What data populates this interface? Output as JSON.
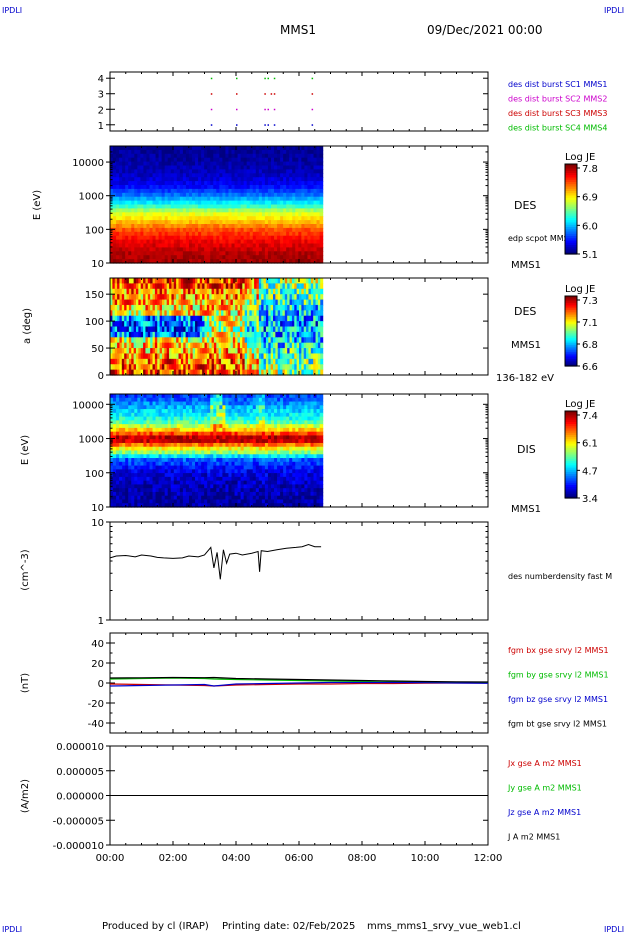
{
  "header": {
    "corner_label": "IPDLI",
    "spacecraft": "MMS1",
    "datetime": "09/Dec/2021 00:00"
  },
  "footer": {
    "credit": "Produced by cl (IRAP)",
    "printing_date": "Printing date: 02/Feb/2025",
    "filename": "mms_mms1_srvy_vue_web1.cl"
  },
  "colors": {
    "blue": "#0000cc",
    "magenta": "#cc00cc",
    "red": "#cc0000",
    "green": "#00bb00",
    "black": "#000000"
  },
  "chart_data": [
    {
      "type": "scatter",
      "panel": "burst-availability",
      "yticks": [
        "1",
        "2",
        "3",
        "4"
      ],
      "ylim": [
        0.6,
        4.4
      ],
      "xlim": [
        0,
        12
      ],
      "series": [
        {
          "name": "des dist burst SC1 MMS1",
          "y": 1,
          "color": "#0000cc",
          "x": [
            3.2,
            4.0,
            4.9,
            5.0,
            5.2,
            6.4
          ]
        },
        {
          "name": "des dist burst SC2 MMS2",
          "y": 2,
          "color": "#cc00cc",
          "x": [
            3.2,
            4.0,
            4.9,
            5.0,
            5.2,
            6.4
          ]
        },
        {
          "name": "des dist burst SC3 MMS3",
          "y": 3,
          "color": "#cc0000",
          "x": [
            3.2,
            4.0,
            4.9,
            5.1,
            5.2,
            6.4
          ]
        },
        {
          "name": "des dist burst SC4 MMS4",
          "y": 4,
          "color": "#00bb00",
          "x": [
            3.2,
            4.0,
            4.9,
            5.0,
            5.2,
            6.4
          ]
        }
      ]
    },
    {
      "type": "heatmap",
      "panel": "des-energy",
      "ylabel": "E (eV)",
      "yscale": "log",
      "ylim": [
        10,
        30000
      ],
      "yticks": [
        "10",
        "100",
        "1000",
        "10000"
      ],
      "xlim": [
        0,
        12
      ],
      "data_end": 6.75,
      "right_labels": [
        "DES",
        "edp scpot MMS1",
        "MMS1"
      ],
      "colorbar": {
        "title": "Log JE",
        "min": 5.1,
        "max": 8.0,
        "ticks": [
          "7.8",
          "6.9",
          "6.0",
          "5.1"
        ]
      },
      "profile_log_energy": [
        1.0,
        1.3,
        1.6,
        2.0,
        2.3,
        2.5,
        2.7,
        3.0,
        3.3,
        3.6,
        4.0,
        4.5
      ],
      "profile_value": [
        7.9,
        7.85,
        7.7,
        7.4,
        7.0,
        6.8,
        6.3,
        5.8,
        5.45,
        5.3,
        5.2,
        5.15
      ]
    },
    {
      "type": "heatmap",
      "panel": "des-pitch-angle",
      "ylabel": "a (deg)",
      "ylim": [
        0,
        180
      ],
      "yticks": [
        "0",
        "50",
        "100",
        "150"
      ],
      "xlim": [
        0,
        12
      ],
      "data_end": 6.75,
      "right_labels": [
        "DES",
        "MMS1",
        "136-182 eV"
      ],
      "colorbar": {
        "title": "Log JE",
        "min": 6.6,
        "max": 7.35,
        "ticks": [
          "7.3",
          "7.1",
          "6.8",
          "6.6"
        ]
      }
    },
    {
      "type": "heatmap",
      "panel": "dis-energy",
      "ylabel": "E (eV)",
      "yscale": "log",
      "ylim": [
        10,
        20000
      ],
      "yticks": [
        "10",
        "100",
        "1000",
        "10000"
      ],
      "xlim": [
        0,
        12
      ],
      "data_end": 6.75,
      "right_labels": [
        "DIS",
        "MMS1"
      ],
      "colorbar": {
        "title": "Log JE",
        "min": 3.4,
        "max": 7.6,
        "ticks": [
          "7.4",
          "6.1",
          "4.7",
          "3.4"
        ]
      },
      "profile_log_energy": [
        1.0,
        1.5,
        2.0,
        2.4,
        2.6,
        2.75,
        2.9,
        3.0,
        3.15,
        3.3,
        3.5,
        3.8,
        4.0,
        4.3
      ],
      "profile_value": [
        3.5,
        3.6,
        3.8,
        4.3,
        5.6,
        6.2,
        7.2,
        7.5,
        6.8,
        6.0,
        5.2,
        4.8,
        4.5,
        4.1
      ]
    },
    {
      "type": "line",
      "panel": "density",
      "ylabel": "(cm^-3)",
      "yscale": "log",
      "ylim": [
        1,
        10
      ],
      "yticks": [
        "1",
        "10"
      ],
      "xlim": [
        0,
        12
      ],
      "series": [
        {
          "name": "des numberdensity fast M",
          "color": "#000000",
          "x": [
            0.0,
            0.2,
            0.5,
            0.8,
            1.0,
            1.3,
            1.5,
            1.7,
            2.0,
            2.3,
            2.5,
            2.8,
            3.0,
            3.2,
            3.3,
            3.4,
            3.5,
            3.6,
            3.7,
            3.8,
            4.0,
            4.2,
            4.5,
            4.7,
            4.75,
            4.8,
            5.0,
            5.3,
            5.6,
            5.9,
            6.1,
            6.3,
            6.5,
            6.7
          ],
          "y": [
            4.3,
            4.5,
            4.55,
            4.4,
            4.6,
            4.5,
            4.35,
            4.3,
            4.25,
            4.3,
            4.5,
            4.4,
            4.6,
            5.5,
            3.4,
            4.9,
            2.6,
            5.2,
            3.8,
            4.7,
            4.8,
            4.6,
            4.8,
            5.0,
            3.1,
            5.1,
            5.0,
            5.2,
            5.4,
            5.5,
            5.6,
            5.9,
            5.6,
            5.6
          ]
        }
      ]
    },
    {
      "type": "line",
      "panel": "magnetic-field",
      "ylabel": "(nT)",
      "ylim": [
        -50,
        50
      ],
      "yticks": [
        "-40",
        "-20",
        "0",
        "20",
        "40"
      ],
      "xlim": [
        0,
        12
      ],
      "series": [
        {
          "name": "fgm bx gse srvy l2 MMS1",
          "color": "#cc0000",
          "x": [
            0,
            1,
            2,
            3,
            3.3,
            4,
            5,
            6,
            7,
            8,
            9,
            10,
            11,
            12
          ],
          "y": [
            -1,
            -1.5,
            -2,
            -2.5,
            -3,
            -2,
            -1.5,
            -1,
            -1,
            -0.5,
            -0.5,
            -0.2,
            0,
            0
          ]
        },
        {
          "name": "fgm by gse srvy l2 MMS1",
          "color": "#00bb00",
          "x": [
            0,
            1,
            2,
            3,
            3.3,
            4,
            5,
            6,
            7,
            8,
            9,
            10,
            11,
            12
          ],
          "y": [
            4,
            4.5,
            5,
            4.5,
            4,
            3.5,
            3,
            2.5,
            2,
            1.5,
            1,
            0.8,
            0.5,
            0.3
          ]
        },
        {
          "name": "fgm bz gse srvy l2 MMS1",
          "color": "#0000cc",
          "x": [
            0,
            1,
            2,
            3,
            3.3,
            4,
            5,
            6,
            7,
            8,
            9,
            10,
            11,
            12
          ],
          "y": [
            -3,
            -2.5,
            -2,
            -1.5,
            -3,
            -1,
            -0.5,
            0,
            0.5,
            0.5,
            0.5,
            0.3,
            0,
            -0.3
          ]
        },
        {
          "name": "fgm bt gse srvy l2 MMS1",
          "color": "#000000",
          "x": [
            0,
            1,
            2,
            3,
            3.3,
            4,
            5,
            6,
            7,
            8,
            9,
            10,
            11,
            12
          ],
          "y": [
            5,
            5.2,
            5.5,
            5.3,
            5.5,
            4.5,
            4,
            3.5,
            3,
            2.5,
            2,
            1.5,
            1.2,
            1
          ]
        }
      ]
    },
    {
      "type": "line",
      "panel": "current-density",
      "ylabel": "(A/m2)",
      "ylim": [
        -1e-05,
        1e-05
      ],
      "yticks": [
        "0.000010",
        "0.000005",
        "0.000000",
        "-0.000005",
        "-0.000010"
      ],
      "xlim": [
        0,
        12
      ],
      "xticks": [
        "00:00",
        "02:00",
        "04:00",
        "06:00",
        "08:00",
        "10:00",
        "12:00"
      ],
      "series": [
        {
          "name": "Jx gse A m2 MMS1",
          "color": "#cc0000",
          "x": [
            0,
            10.3
          ],
          "y": [
            0,
            0
          ]
        },
        {
          "name": "Jy gse A m2 MMS1",
          "color": "#00bb00",
          "x": [
            0,
            10.3
          ],
          "y": [
            0,
            0
          ]
        },
        {
          "name": "Jz gse A m2 MMS1",
          "color": "#0000cc",
          "x": [
            0,
            10.3
          ],
          "y": [
            0,
            0
          ]
        },
        {
          "name": "J A m2 MMS1",
          "color": "#000000",
          "x": [
            0,
            10.3
          ],
          "y": [
            0,
            0
          ]
        }
      ]
    }
  ]
}
